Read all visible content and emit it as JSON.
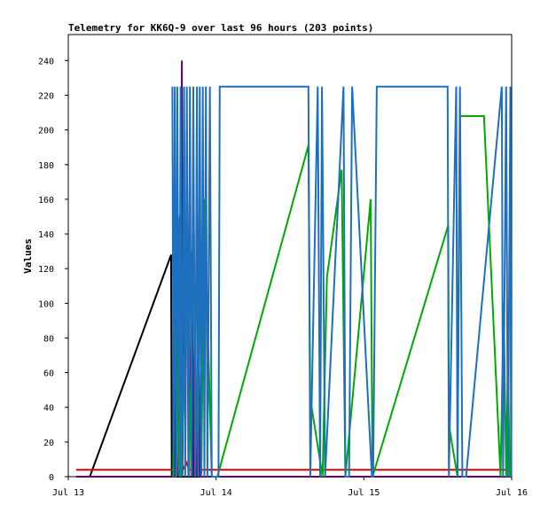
{
  "chart_data": {
    "type": "line",
    "title": "Telemetry for KK6Q-9 over last 96 hours (203 points)",
    "xlabel": "",
    "ylabel": "Values",
    "xlim": [
      0,
      72
    ],
    "ylim": [
      0,
      255
    ],
    "grid": false,
    "x_ticks": [
      {
        "x": 0,
        "label": "Jul 13"
      },
      {
        "x": 24,
        "label": "Jul 14"
      },
      {
        "x": 48,
        "label": "Jul 15"
      },
      {
        "x": 72,
        "label": "Jul 16"
      }
    ],
    "y_ticks": [
      0,
      20,
      40,
      60,
      80,
      100,
      120,
      140,
      160,
      180,
      200,
      220,
      240
    ],
    "series": [
      {
        "color": "#000000",
        "points": [
          [
            1.3,
            0
          ],
          [
            3.5,
            0
          ],
          [
            16.7,
            128
          ],
          [
            16.8,
            0
          ],
          [
            17.2,
            0
          ],
          [
            17.5,
            122
          ],
          [
            17.7,
            0
          ],
          [
            18.5,
            0
          ],
          [
            20.8,
            0
          ],
          [
            21.5,
            0
          ],
          [
            22,
            0
          ],
          [
            72,
            0
          ]
        ]
      },
      {
        "color": "#dd0000",
        "points": [
          [
            1.3,
            4
          ],
          [
            18.6,
            4
          ],
          [
            19.2,
            8
          ],
          [
            19.6,
            4
          ],
          [
            72,
            4
          ]
        ]
      },
      {
        "color": "#660066",
        "points": [
          [
            1.3,
            0
          ],
          [
            17.4,
            0
          ],
          [
            17.8,
            60
          ],
          [
            18.1,
            150
          ],
          [
            18.2,
            15
          ],
          [
            18.45,
            240
          ],
          [
            18.55,
            0
          ],
          [
            18.8,
            200
          ],
          [
            19,
            10
          ],
          [
            19.3,
            170
          ],
          [
            19.6,
            0
          ],
          [
            20.1,
            130
          ],
          [
            20.3,
            0
          ],
          [
            20.6,
            110
          ],
          [
            20.8,
            0
          ],
          [
            21.2,
            60
          ],
          [
            21.4,
            0
          ],
          [
            72,
            0
          ]
        ]
      },
      {
        "color": "#00aa00",
        "points": [
          [
            17,
            0
          ],
          [
            17.4,
            115
          ],
          [
            17.6,
            0
          ],
          [
            18.1,
            145
          ],
          [
            18.3,
            0
          ],
          [
            19.3,
            115
          ],
          [
            19.6,
            0
          ],
          [
            20.4,
            140
          ],
          [
            20.6,
            0
          ],
          [
            21.4,
            120
          ],
          [
            21.6,
            0
          ],
          [
            22.1,
            160
          ],
          [
            23.3,
            0
          ],
          [
            24.2,
            0
          ],
          [
            39,
            191
          ],
          [
            39.3,
            45
          ],
          [
            41.3,
            0
          ],
          [
            42,
            115
          ],
          [
            44.4,
            177
          ],
          [
            45,
            0
          ],
          [
            49.1,
            160
          ],
          [
            49.4,
            0
          ],
          [
            61.7,
            145
          ],
          [
            61.8,
            30
          ],
          [
            63.2,
            0
          ],
          [
            63.6,
            208
          ],
          [
            67.5,
            208
          ],
          [
            70.2,
            0
          ],
          [
            70.7,
            100
          ],
          [
            71.1,
            0
          ],
          [
            71.4,
            65
          ],
          [
            71.7,
            0
          ]
        ]
      },
      {
        "color": "#1f6fbf",
        "points": [
          [
            16.9,
            225
          ],
          [
            17.1,
            0
          ],
          [
            17.3,
            225
          ],
          [
            17.5,
            0
          ],
          [
            17.7,
            225
          ],
          [
            18,
            0
          ],
          [
            18.25,
            225
          ],
          [
            18.5,
            0
          ],
          [
            18.8,
            225
          ],
          [
            19,
            0
          ],
          [
            19.25,
            225
          ],
          [
            19.5,
            0
          ],
          [
            19.75,
            225
          ],
          [
            20,
            0
          ],
          [
            20.3,
            225
          ],
          [
            20.6,
            0
          ],
          [
            20.9,
            225
          ],
          [
            21.1,
            0
          ],
          [
            21.35,
            225
          ],
          [
            21.6,
            0
          ],
          [
            21.85,
            225
          ],
          [
            22.1,
            0
          ],
          [
            22.35,
            225
          ],
          [
            22.6,
            0
          ],
          [
            23,
            225
          ],
          [
            23.3,
            0
          ],
          [
            24.4,
            0
          ],
          [
            24.6,
            225
          ],
          [
            39,
            225
          ],
          [
            39.3,
            0
          ],
          [
            40.5,
            225
          ],
          [
            40.9,
            0
          ],
          [
            41.2,
            225
          ],
          [
            41.7,
            0
          ],
          [
            44.7,
            225
          ],
          [
            45,
            0
          ],
          [
            45.6,
            0
          ],
          [
            46.1,
            225
          ],
          [
            49.3,
            0
          ],
          [
            49.5,
            0
          ],
          [
            50.1,
            225
          ],
          [
            61.6,
            225
          ],
          [
            61.8,
            0
          ],
          [
            63,
            225
          ],
          [
            63.2,
            0
          ],
          [
            63.6,
            225
          ],
          [
            64,
            0
          ],
          [
            64.6,
            0
          ],
          [
            70.4,
            225
          ],
          [
            70.6,
            0
          ],
          [
            71.1,
            225
          ],
          [
            71.4,
            0
          ],
          [
            71.8,
            225
          ],
          [
            71.9,
            0
          ]
        ]
      }
    ]
  }
}
